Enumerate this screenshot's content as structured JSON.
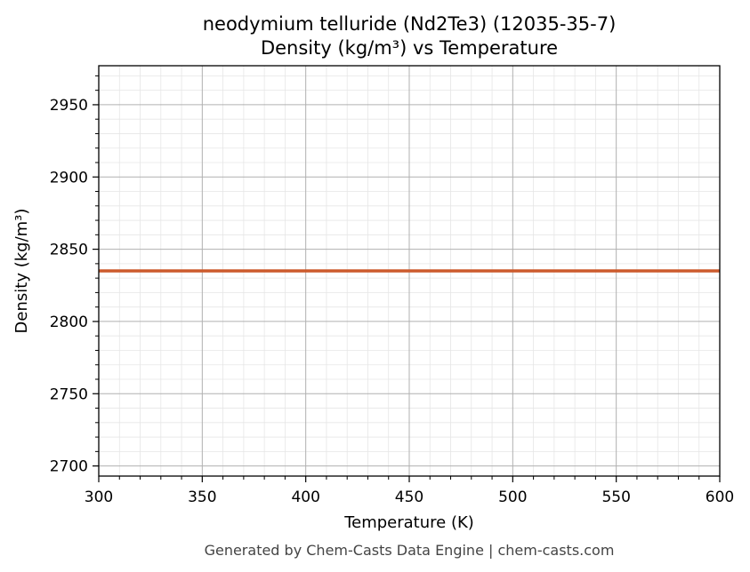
{
  "chart_data": {
    "type": "line",
    "title_line1": "neodymium telluride (Nd2Te3) (12035-35-7)",
    "title_line2": "Density (kg/m³) vs Temperature",
    "xlabel": "Temperature (K)",
    "ylabel": "Density (kg/m³)",
    "xlim": [
      300,
      600
    ],
    "ylim": [
      2693,
      2977
    ],
    "x_major_ticks": [
      300,
      350,
      400,
      450,
      500,
      550,
      600
    ],
    "x_tick_labels": [
      "300",
      "350",
      "400",
      "450",
      "500",
      "550",
      "600"
    ],
    "x_minor_step": 10,
    "y_major_ticks": [
      2700,
      2750,
      2800,
      2850,
      2900,
      2950
    ],
    "y_tick_labels": [
      "2700",
      "2750",
      "2800",
      "2850",
      "2900",
      "2950"
    ],
    "y_minor_step": 10,
    "grid": true,
    "series": [
      {
        "color": "#cc5a2c",
        "x": [
          300,
          600
        ],
        "y": [
          2835,
          2835
        ]
      }
    ]
  },
  "footer": "Generated by Chem-Casts Data Engine | chem-casts.com",
  "colors": {
    "major_grid": "#b0b0b0",
    "minor_grid": "#e6e6e6",
    "line": "#cc5a2c"
  }
}
